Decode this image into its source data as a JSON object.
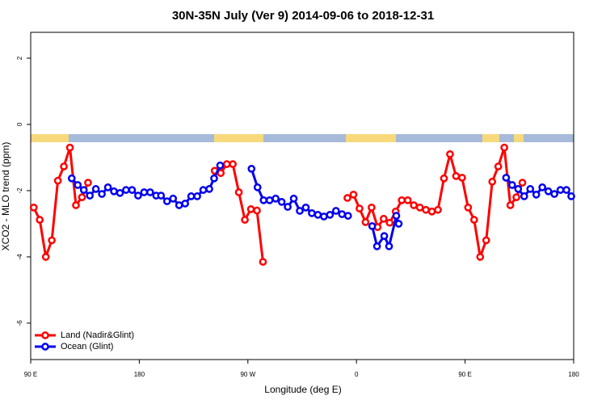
{
  "chart_data": {
    "type": "line",
    "title": "30N-35N July (Ver 9)   2014-09-06 to 2018-12-31",
    "xlabel": "Longitude (deg E)",
    "ylabel": "XCO2 - MLO trend (ppm)",
    "xlim": [
      90,
      540
    ],
    "ylim": [
      -7.1,
      2.78
    ],
    "xticks": [
      {
        "value": 90,
        "label": "90 E"
      },
      {
        "value": 180,
        "label": "180"
      },
      {
        "value": 270,
        "label": "90 W"
      },
      {
        "value": 360,
        "label": "0"
      },
      {
        "value": 450,
        "label": "90 E"
      },
      {
        "value": 540,
        "label": "180"
      }
    ],
    "yticks": [
      2,
      0,
      -2,
      -4,
      -6
    ],
    "legend": "bottom-left",
    "series": [
      {
        "name": "Land (Nadir&Glint)",
        "color": "#ff0000",
        "x": [
          92.5,
          97.5,
          102.5,
          107.5,
          112.5,
          117.5,
          122.5,
          127.5,
          132.5,
          137.5,
          142.5,
          242.5,
          247.5,
          252.5,
          257.5,
          262.5,
          267.5,
          272.5,
          277.5,
          282.5,
          287.5,
          352.5,
          357.5,
          362.5,
          367.5,
          372.5,
          377.5,
          382.5,
          387.5,
          392.5,
          397.5,
          402.5,
          407.5,
          412.5,
          417.5,
          422.5,
          427.5,
          432.5,
          437.5,
          442.5,
          447.5,
          452.5,
          457.5,
          462.5,
          467.5,
          472.5,
          477.5,
          482.5,
          487.5,
          492.5,
          497.5
        ],
        "values": [
          -2.51,
          -2.88,
          -4.0,
          -3.5,
          -1.7,
          -1.27,
          -0.7,
          -2.44,
          -2.2,
          -1.76,
          null,
          -1.4,
          -1.47,
          -1.2,
          -1.2,
          -2.05,
          -2.88,
          -2.56,
          -2.6,
          -4.15,
          null,
          -2.22,
          -2.12,
          -2.54,
          -2.95,
          -2.51,
          -3.1,
          -2.85,
          -2.97,
          -2.63,
          -2.29,
          -2.29,
          -2.44,
          -2.51,
          -2.58,
          -2.63,
          -2.58,
          -1.63,
          -0.9,
          -1.56,
          -1.61,
          -2.51,
          -2.88,
          -4.0,
          -3.5,
          -1.73,
          -1.27,
          -0.7,
          -2.44,
          -2.2,
          -1.76
        ]
      },
      {
        "name": "Ocean (Glint)",
        "color": "#0000ee",
        "x": [
          124,
          129,
          134,
          139,
          144,
          149,
          154,
          159,
          164,
          169,
          174,
          179,
          184,
          189,
          194,
          198,
          203,
          208,
          213,
          218,
          223,
          228,
          233,
          238,
          242,
          247,
          252,
          273,
          278,
          283,
          288,
          293,
          298,
          303,
          308,
          313,
          318,
          323,
          328,
          333,
          338,
          343,
          348,
          353,
          358,
          373,
          377,
          383,
          387,
          393,
          395,
          400,
          484,
          489,
          494,
          499,
          504,
          509,
          514,
          519,
          524,
          529,
          534,
          538
        ],
        "values": [
          -1.63,
          -1.83,
          -1.98,
          -2.15,
          -1.95,
          -2.1,
          -1.9,
          -2.02,
          -2.07,
          -1.98,
          -1.98,
          -2.15,
          -2.05,
          -2.05,
          -2.15,
          -2.15,
          -2.32,
          -2.24,
          -2.44,
          -2.39,
          -2.17,
          -2.17,
          -1.98,
          -1.95,
          -1.63,
          -1.24,
          null,
          -1.34,
          -1.9,
          -2.29,
          -2.29,
          -2.24,
          -2.34,
          -2.49,
          -2.24,
          -2.61,
          -2.51,
          -2.68,
          -2.73,
          -2.78,
          -2.73,
          -2.61,
          -2.71,
          -2.76,
          null,
          -3.07,
          -3.68,
          -3.37,
          -3.68,
          -2.76,
          -3.0,
          null,
          -1.61,
          -1.83,
          -1.95,
          -2.17,
          -1.95,
          -2.12,
          -1.9,
          -2.02,
          -2.1,
          -1.98,
          -1.98,
          -2.17
        ]
      }
    ]
  }
}
